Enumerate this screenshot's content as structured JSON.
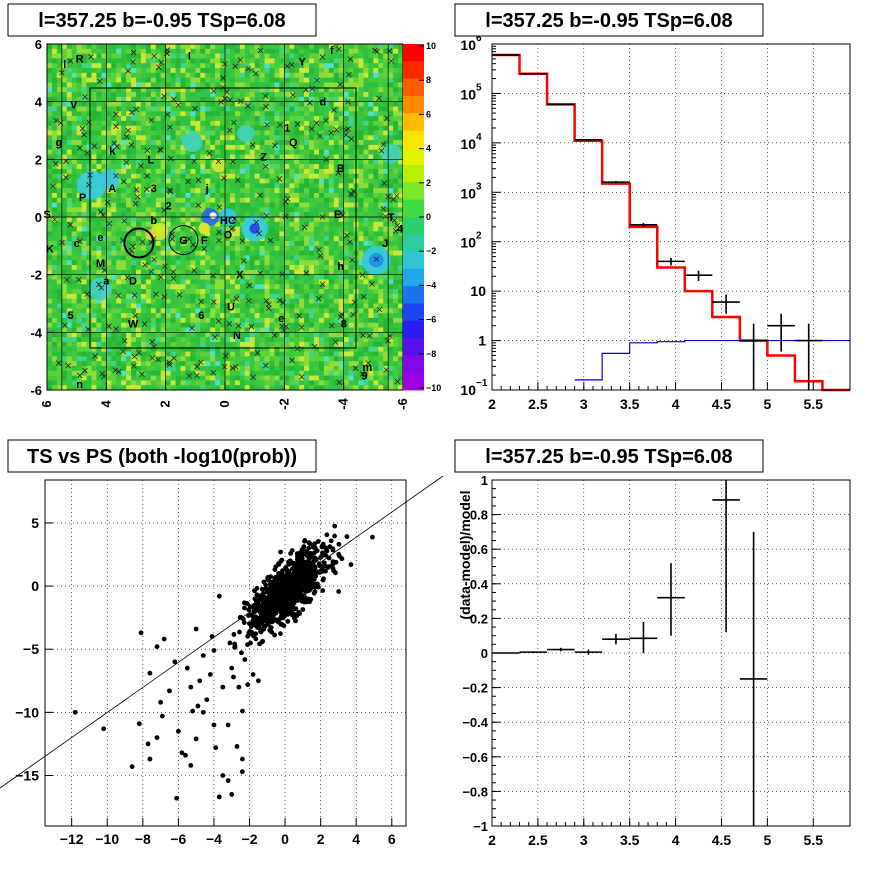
{
  "panels": {
    "map": {
      "title": "l=357.25 b=-0.95 TSp=6.08",
      "x_ticks": [
        "6",
        "4",
        "2",
        "0",
        "-2",
        "-4",
        "-6"
      ],
      "y_ticks": [
        "6",
        "4",
        "2",
        "0",
        "-2",
        "-4",
        "-6"
      ],
      "colorbar_ticks": [
        "10",
        "8",
        "6",
        "4",
        "2",
        "0",
        "−2",
        "−4",
        "−6",
        "−8",
        "−10"
      ],
      "source_labels": [
        {
          "t": "f",
          "l": -3.6,
          "b": 5.8
        },
        {
          "t": "Y",
          "l": -2.6,
          "b": 5.4
        },
        {
          "t": "I",
          "l": 1.2,
          "b": 5.6
        },
        {
          "t": "R",
          "l": 4.9,
          "b": 5.5
        },
        {
          "t": "l",
          "l": 5.4,
          "b": 5.3
        },
        {
          "t": "d",
          "l": -3.3,
          "b": 4.0
        },
        {
          "t": "V",
          "l": 5.1,
          "b": 3.9
        },
        {
          "t": "1",
          "l": -2.1,
          "b": 3.1
        },
        {
          "t": "Q",
          "l": -2.3,
          "b": 2.6
        },
        {
          "t": "Z",
          "l": -1.3,
          "b": 2.1
        },
        {
          "t": "L",
          "l": 2.5,
          "b": 2.0
        },
        {
          "t": "k",
          "l": 3.8,
          "b": 2.3
        },
        {
          "t": "g",
          "l": 5.6,
          "b": 2.6
        },
        {
          "t": "B",
          "l": -3.9,
          "b": 1.7
        },
        {
          "t": "j",
          "l": 0.6,
          "b": 1.0
        },
        {
          "t": "3",
          "l": 2.4,
          "b": 1.0
        },
        {
          "t": "A",
          "l": 3.8,
          "b": 1.0
        },
        {
          "t": "P",
          "l": 4.8,
          "b": 0.7
        },
        {
          "t": "2",
          "l": 1.9,
          "b": 0.4
        },
        {
          "t": "T",
          "l": -5.6,
          "b": 0.0
        },
        {
          "t": "E",
          "l": -3.8,
          "b": 0.1
        },
        {
          "t": "HC",
          "l": -0.1,
          "b": -0.1
        },
        {
          "t": "b",
          "l": 2.4,
          "b": -0.1
        },
        {
          "t": "S",
          "l": 6.0,
          "b": 0.1
        },
        {
          "t": "4",
          "l": -5.9,
          "b": -0.4
        },
        {
          "t": "O",
          "l": -0.1,
          "b": -0.6
        },
        {
          "t": "F",
          "l": 0.7,
          "b": -0.8
        },
        {
          "t": "G",
          "l": 1.4,
          "b": -0.8
        },
        {
          "t": "e",
          "l": 4.2,
          "b": -0.7
        },
        {
          "t": "c",
          "l": 5.0,
          "b": -0.9
        },
        {
          "t": "J",
          "l": -5.4,
          "b": -0.9
        },
        {
          "t": "K",
          "l": 5.9,
          "b": -1.1
        },
        {
          "t": "h",
          "l": -3.9,
          "b": -1.7
        },
        {
          "t": "M",
          "l": 4.2,
          "b": -1.6
        },
        {
          "t": "X",
          "l": -0.5,
          "b": -2.0
        },
        {
          "t": "D",
          "l": 3.1,
          "b": -2.2
        },
        {
          "t": "a",
          "l": 4.0,
          "b": -2.2
        },
        {
          "t": "U",
          "l": -0.2,
          "b": -3.1
        },
        {
          "t": "e",
          "l": -1.9,
          "b": -3.5
        },
        {
          "t": "6",
          "l": 0.8,
          "b": -3.4
        },
        {
          "t": "W",
          "l": 3.1,
          "b": -3.7
        },
        {
          "t": "5",
          "l": 5.2,
          "b": -3.4
        },
        {
          "t": "8",
          "l": -4.0,
          "b": -3.7
        },
        {
          "t": "N",
          "l": -0.4,
          "b": -4.1
        },
        {
          "t": "m",
          "l": -4.8,
          "b": -5.2
        },
        {
          "t": "9",
          "l": -4.7,
          "b": -5.5
        },
        {
          "t": "n",
          "l": 4.9,
          "b": -5.8
        }
      ]
    },
    "spectrum": {
      "title": "l=357.25 b=-0.95 TSp=6.08",
      "y_tick_exps": [
        "6",
        "5",
        "4",
        "3",
        "2"
      ],
      "y_tick_plain": [
        "10",
        "1"
      ],
      "y_tick_bottom": "10",
      "y_tick_bottom_exp": "−1",
      "x_ticks": [
        "2",
        "2.5",
        "3",
        "3.5",
        "4",
        "4.5",
        "5",
        "5.5"
      ]
    },
    "scatter": {
      "title": "TS vs PS (both -log10(prob))",
      "x_ticks": [
        "−12",
        "−10",
        "−8",
        "−6",
        "−4",
        "−2",
        "0",
        "2",
        "4",
        "6"
      ],
      "y_ticks": [
        "5",
        "0",
        "−5",
        "−10",
        "−15"
      ]
    },
    "residual": {
      "title": "l=357.25 b=-0.95 TSp=6.08",
      "ylabel": "(data-model)/model",
      "y_ticks": [
        "1",
        "0.8",
        "0.6",
        "0.4",
        "0.2",
        "0",
        "−0.2",
        "−0.4",
        "−0.6",
        "−0.8",
        "−1"
      ],
      "x_ticks": [
        "2",
        "2.5",
        "3",
        "3.5",
        "4",
        "4.5",
        "5",
        "5.5"
      ]
    }
  },
  "chart_data": [
    {
      "type": "heatmap",
      "title": "l=357.25 b=-0.95 TSp=6.08",
      "x_range": [
        6,
        -6
      ],
      "y_range": [
        -6,
        6
      ],
      "z_range": [
        -10,
        10
      ],
      "circles": [
        {
          "l": 1.4,
          "b": -0.8,
          "r": 0.5
        },
        {
          "l": 2.9,
          "b": -0.9,
          "r": 0.5
        }
      ]
    },
    {
      "type": "line",
      "title": "l=357.25 b=-0.95 TSp=6.08",
      "log_y": true,
      "xlim": [
        2,
        5.9
      ],
      "ylim": [
        0.1,
        1000000
      ],
      "bin_edges": [
        2.0,
        2.3,
        2.6,
        2.9,
        3.2,
        3.5,
        3.8,
        4.1,
        4.4,
        4.7,
        5.0,
        5.3,
        5.6,
        5.9
      ],
      "series": [
        {
          "color": "#ff0000",
          "values": [
            600000,
            250000,
            60000,
            11000,
            1500,
            200,
            30,
            10,
            3,
            1,
            0.5,
            0.15,
            0.1
          ]
        },
        {
          "color": "#0000cc",
          "values": [
            null,
            null,
            null,
            0.16,
            0.55,
            0.9,
            0.95,
            1.0,
            1.0,
            1.0,
            1.0,
            1.0,
            1.0
          ]
        }
      ],
      "points": [
        {
          "x": 2.15,
          "y": 600000,
          "xe": 0.15,
          "ylo": 600000,
          "yhi": 600000
        },
        {
          "x": 2.45,
          "y": 250000,
          "xe": 0.15,
          "ylo": 250000,
          "yhi": 250000
        },
        {
          "x": 2.75,
          "y": 60000,
          "xe": 0.15,
          "ylo": 60000,
          "yhi": 60000
        },
        {
          "x": 3.05,
          "y": 11500,
          "xe": 0.15,
          "ylo": 11000,
          "yhi": 12000
        },
        {
          "x": 3.35,
          "y": 1600,
          "xe": 0.15,
          "ylo": 1500,
          "yhi": 1700
        },
        {
          "x": 3.65,
          "y": 220,
          "xe": 0.15,
          "ylo": 200,
          "yhi": 240
        },
        {
          "x": 3.95,
          "y": 40,
          "xe": 0.15,
          "ylo": 33,
          "yhi": 47
        },
        {
          "x": 4.25,
          "y": 21,
          "xe": 0.15,
          "ylo": 16,
          "yhi": 26
        },
        {
          "x": 4.55,
          "y": 6,
          "xe": 0.15,
          "ylo": 3.5,
          "yhi": 8.5
        },
        {
          "x": 4.85,
          "y": 1,
          "xe": 0.15,
          "ylo": 0.1,
          "yhi": 2.2
        },
        {
          "x": 5.15,
          "y": 2,
          "xe": 0.15,
          "ylo": 0.6,
          "yhi": 3.5
        },
        {
          "x": 5.45,
          "y": 1,
          "xe": 0.15,
          "ylo": 0.1,
          "yhi": 2.2
        }
      ]
    },
    {
      "type": "scatter",
      "title": "TS vs PS (both -log10(prob))",
      "xlim": [
        -13.5,
        6.8
      ],
      "ylim": [
        -19,
        8.4
      ],
      "reference_line": [
        [
          -13.5,
          -16
        ],
        [
          6.8,
          8.4
        ]
      ],
      "outliers": [
        [
          -11.8,
          -10
        ],
        [
          -10.2,
          -11.3
        ],
        [
          -8.6,
          -14.3
        ],
        [
          -8.2,
          -10.9
        ],
        [
          -7.7,
          -12.5
        ],
        [
          -7.6,
          -13.7
        ],
        [
          -7.2,
          -12.0
        ],
        [
          -7.6,
          -6.9
        ],
        [
          -7.0,
          -9.2
        ],
        [
          -6.9,
          -10.3
        ],
        [
          -6.5,
          -8.3
        ],
        [
          -6.0,
          -11.5
        ],
        [
          -5.8,
          -13.2
        ],
        [
          -5.6,
          -13.4
        ],
        [
          -5.3,
          -14.2
        ],
        [
          -5.0,
          -12.1
        ],
        [
          -4.9,
          -9.5
        ],
        [
          -4.6,
          -10.0
        ],
        [
          -4.4,
          -9.0
        ],
        [
          -4.0,
          -11.0
        ],
        [
          -3.9,
          -12.8
        ],
        [
          -3.2,
          -11.0
        ],
        [
          -2.7,
          -12.7
        ],
        [
          -2.4,
          -13.7
        ],
        [
          -2.4,
          -14.7
        ],
        [
          -3.5,
          -15.0
        ],
        [
          -3.2,
          -15.4
        ],
        [
          -3.7,
          -16.7
        ],
        [
          -6.1,
          -16.8
        ],
        [
          -4.8,
          -7.5
        ],
        [
          -5.5,
          -6.5
        ],
        [
          -6.2,
          -6.0
        ],
        [
          -4.2,
          -7.0
        ],
        [
          -3.5,
          -8.0
        ],
        [
          -3.0,
          -6.5
        ],
        [
          -2.6,
          -8.0
        ],
        [
          -5.3,
          -8.0
        ],
        [
          -6.8,
          -4.2
        ],
        [
          -7.2,
          -4.8
        ],
        [
          -5.0,
          -3.4
        ],
        [
          -4.6,
          -5.5
        ],
        [
          -4.0,
          -5.1
        ],
        [
          -8.1,
          -3.7
        ],
        [
          -3.0,
          -16.5
        ],
        [
          -2.4,
          -9.9
        ],
        [
          -5.2,
          -9.9
        ],
        [
          -1.5,
          -7.5
        ],
        [
          -1.8,
          -7.0
        ],
        [
          -2.1,
          -7.8
        ],
        [
          -3.1,
          -4.5
        ],
        [
          -3.7,
          -0.8
        ],
        [
          -4.1,
          -4.0
        ],
        [
          -2.9,
          -7.2
        ]
      ],
      "cloud": {
        "center_x": 0.2,
        "center_y": -0.3,
        "spread_x": 1.1,
        "spread_y": 1.6,
        "correlation": 0.75,
        "count": 900
      }
    },
    {
      "type": "line",
      "title": "l=357.25 b=-0.95 TSp=6.08",
      "ylabel": "(data-model)/model",
      "xlim": [
        2,
        5.9
      ],
      "ylim": [
        -1,
        1
      ],
      "points": [
        {
          "x": 2.15,
          "y": 0.0,
          "xe": 0.15,
          "ylo": 0.0,
          "yhi": 0.0
        },
        {
          "x": 2.45,
          "y": 0.005,
          "xe": 0.15,
          "ylo": 0.0,
          "yhi": 0.01
        },
        {
          "x": 2.75,
          "y": 0.02,
          "xe": 0.15,
          "ylo": 0.01,
          "yhi": 0.03
        },
        {
          "x": 3.05,
          "y": 0.005,
          "xe": 0.15,
          "ylo": -0.01,
          "yhi": 0.02
        },
        {
          "x": 3.35,
          "y": 0.08,
          "xe": 0.15,
          "ylo": 0.05,
          "yhi": 0.11
        },
        {
          "x": 3.65,
          "y": 0.085,
          "xe": 0.15,
          "ylo": 0.0,
          "yhi": 0.18
        },
        {
          "x": 3.95,
          "y": 0.32,
          "xe": 0.15,
          "ylo": 0.1,
          "yhi": 0.52
        },
        {
          "x": 4.55,
          "y": 0.885,
          "xe": 0.15,
          "ylo": 0.12,
          "yhi": 1.0
        },
        {
          "x": 4.85,
          "y": -0.15,
          "xe": 0.15,
          "ylo": -1.0,
          "yhi": 0.7
        }
      ]
    }
  ]
}
